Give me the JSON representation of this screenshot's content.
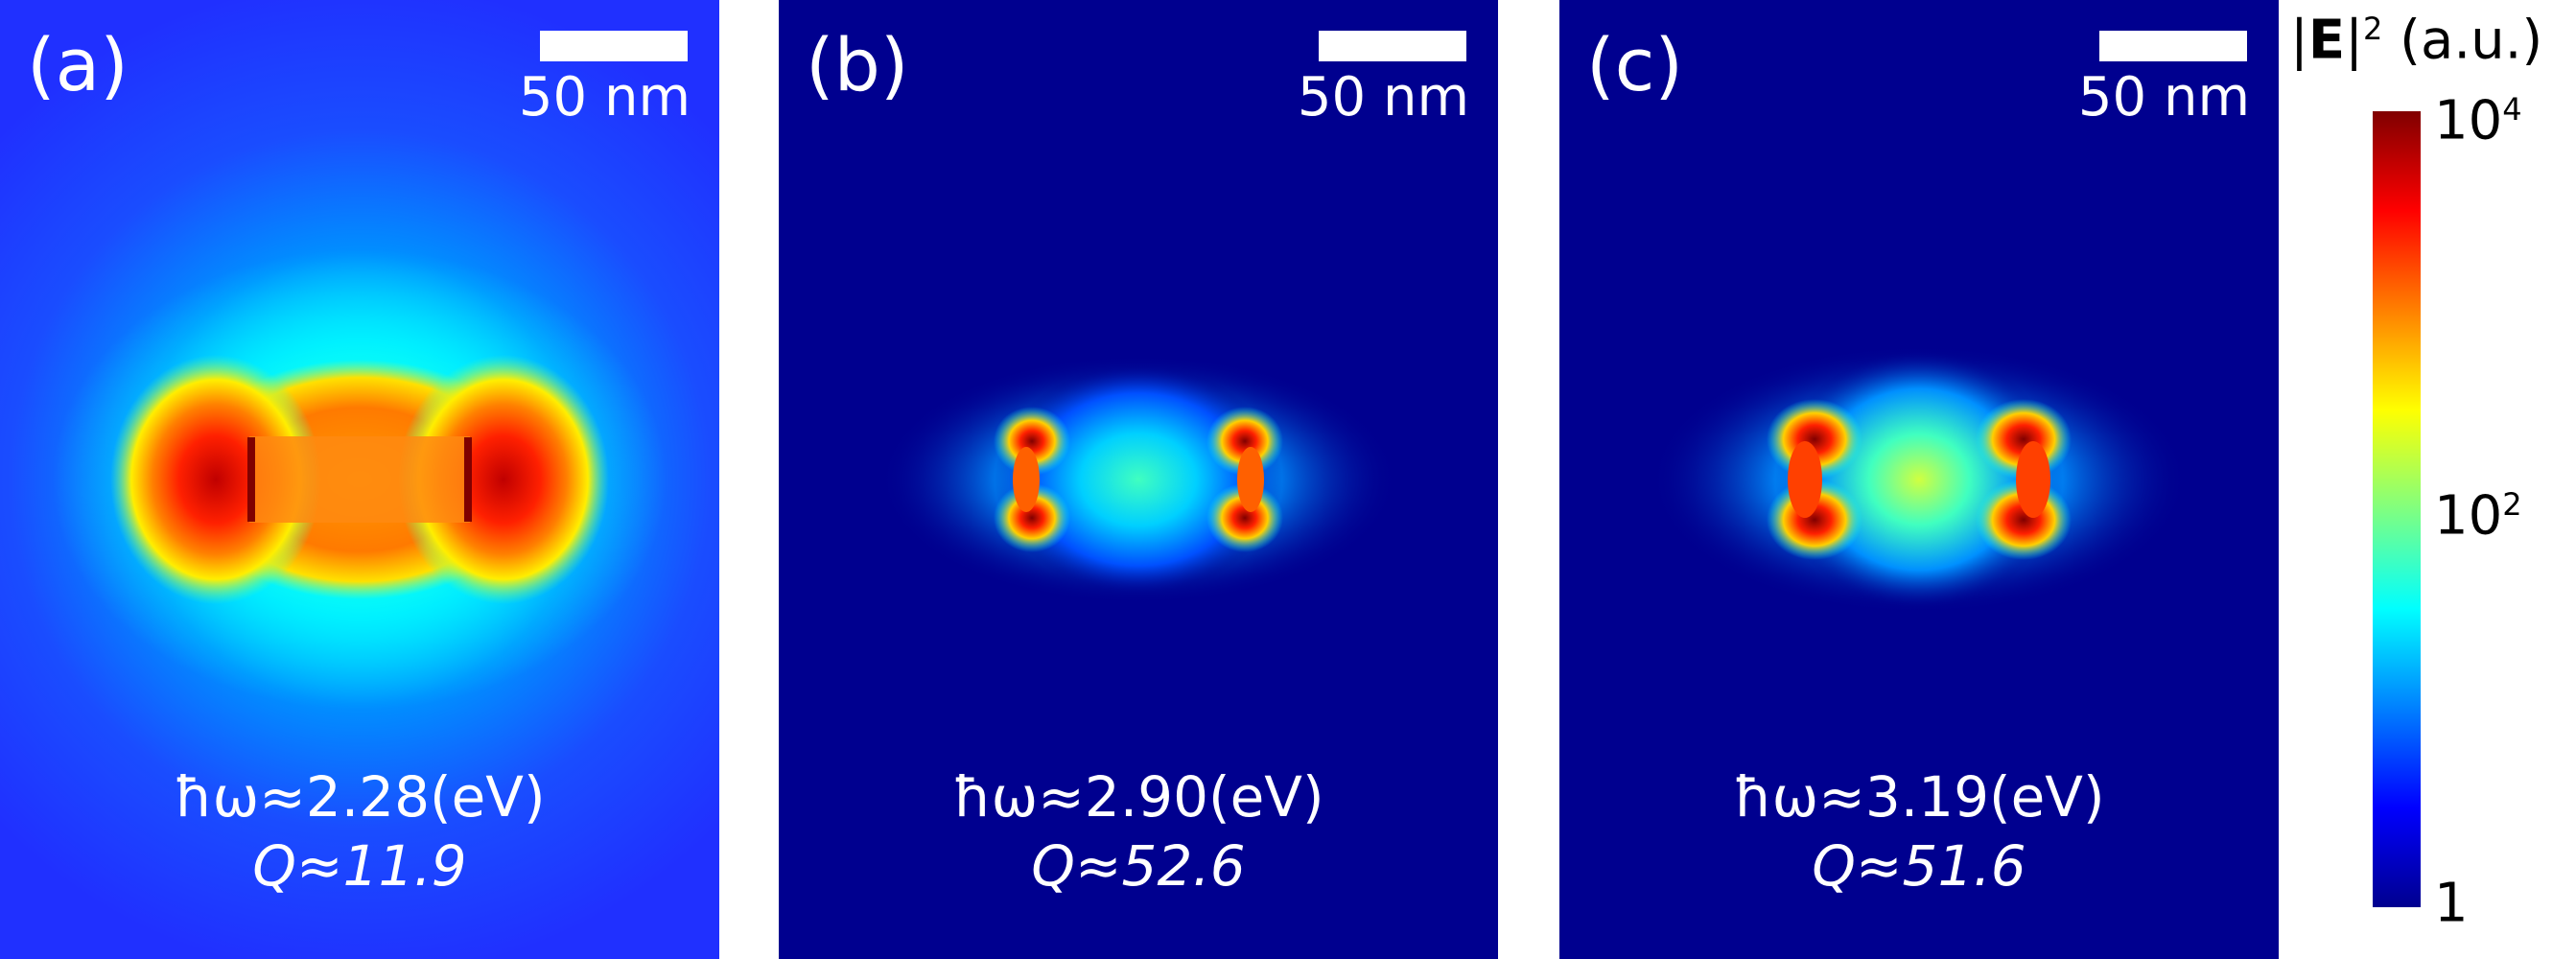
{
  "panels": [
    {
      "label": "(a)",
      "scale": "50 nm",
      "energy": "ħω≈2.28(eV)",
      "q": "Q≈11.9"
    },
    {
      "label": "(b)",
      "scale": "50 nm",
      "energy": "ħω≈2.90(eV)",
      "q": "Q≈52.6"
    },
    {
      "label": "(c)",
      "scale": "50 nm",
      "energy": "ħω≈3.19(eV)",
      "q": "Q≈51.6"
    }
  ],
  "colorbar": {
    "title_pre": "|",
    "title_bold": "E",
    "title_post": "|",
    "title_sup": "2",
    "title_units": " (a.u.)",
    "ticks": [
      {
        "base": "10",
        "exp": "4"
      },
      {
        "base": "10",
        "exp": "2"
      },
      {
        "base": "1",
        "exp": ""
      }
    ]
  },
  "colors": {
    "background_a": "#2a4dff",
    "background_bc": "#00008f",
    "hot": "#c80000",
    "warm": "#ff8c00",
    "mid": "#00e0ff"
  }
}
